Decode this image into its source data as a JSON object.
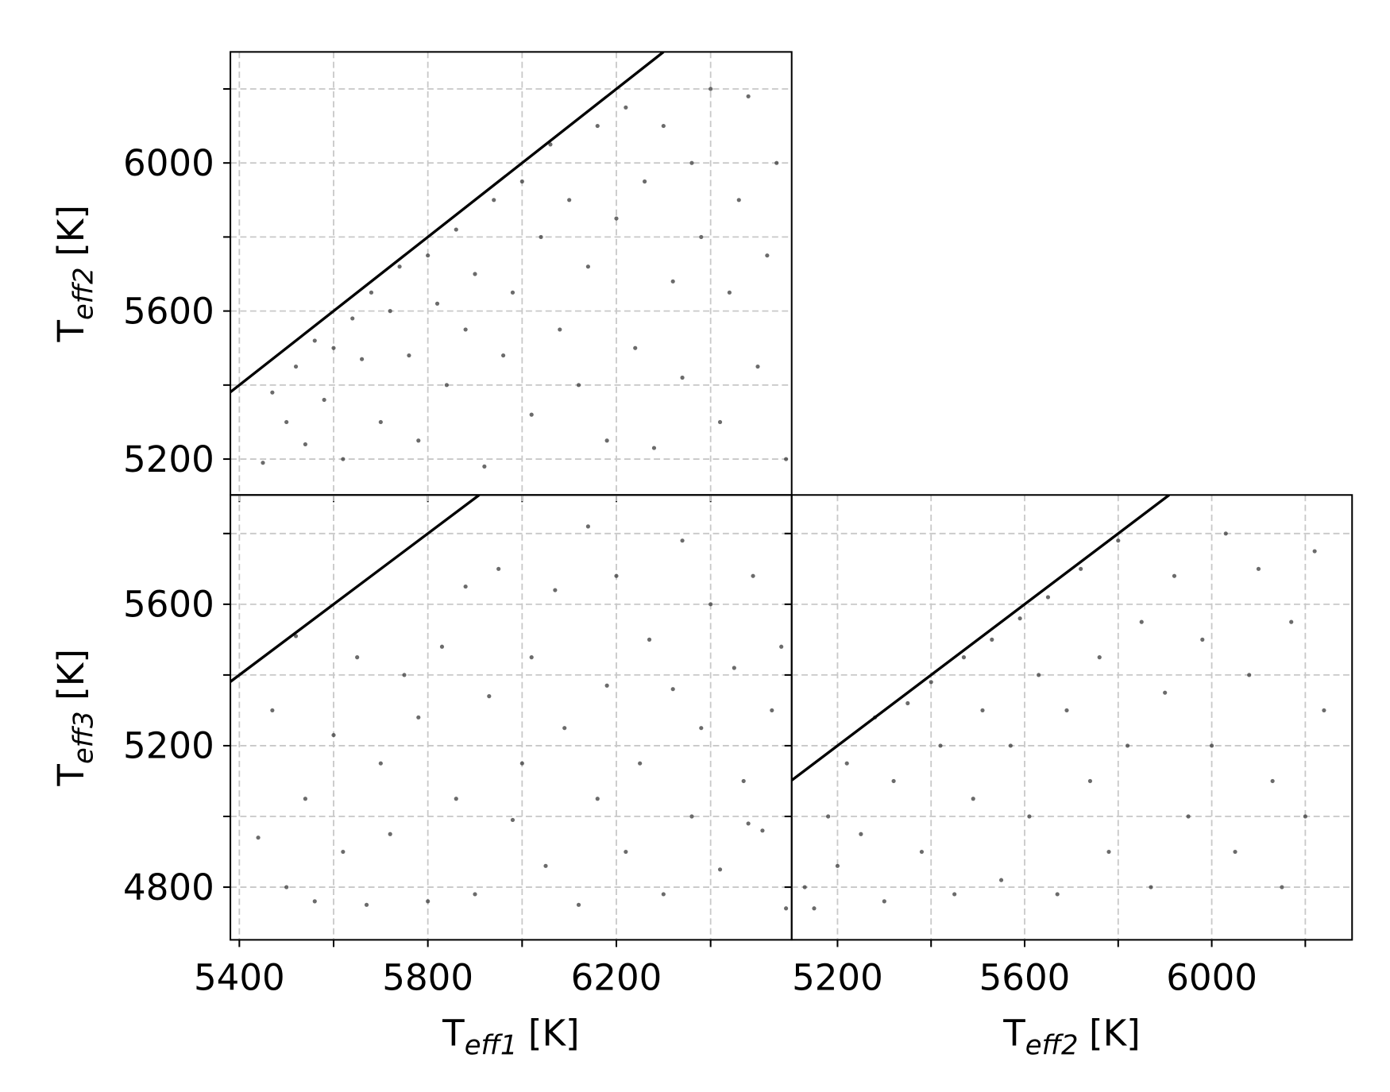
{
  "chart_data": [
    {
      "type": "scatter",
      "color": "#3a3a3a",
      "grid": true,
      "ylabel": {
        "base": "T",
        "sub": "eff2",
        "unit": "[K]"
      },
      "xlim": [
        5381,
        6572
      ],
      "ylim": [
        5103,
        6300
      ],
      "xminor": [
        5400,
        5600,
        5800,
        6000,
        6200,
        6400
      ],
      "yticks": [
        5200,
        5600,
        6000
      ],
      "yminor": [
        5400,
        5800,
        6200
      ],
      "reference_line": {
        "x": [
          5381,
          6300
        ],
        "y": [
          5381,
          6300
        ]
      },
      "x": [
        5450,
        5470,
        5500,
        5520,
        5540,
        5560,
        5580,
        5600,
        5620,
        5640,
        5660,
        5680,
        5700,
        5720,
        5740,
        5760,
        5780,
        5800,
        5820,
        5840,
        5860,
        5880,
        5900,
        5920,
        5940,
        5960,
        5980,
        6000,
        6020,
        6040,
        6060,
        6080,
        6100,
        6120,
        6140,
        6160,
        6180,
        6200,
        6220,
        6240,
        6260,
        6280,
        6300,
        6320,
        6340,
        6360,
        6380,
        6400,
        6420,
        6440,
        6460,
        6480,
        6500,
        6520,
        6540,
        6560
      ],
      "y": [
        5190,
        5380,
        5300,
        5450,
        5240,
        5520,
        5360,
        5500,
        5200,
        5580,
        5470,
        5650,
        5300,
        5600,
        5720,
        5480,
        5250,
        5750,
        5620,
        5400,
        5820,
        5550,
        5700,
        5180,
        5900,
        5480,
        5650,
        5950,
        5320,
        5800,
        6050,
        5550,
        5900,
        5400,
        5720,
        6100,
        5250,
        5850,
        6150,
        5500,
        5950,
        5230,
        6100,
        5680,
        5420,
        6000,
        5800,
        6200,
        5300,
        5650,
        5900,
        6180,
        5450,
        5750,
        6000,
        5200
      ]
    },
    {
      "type": "scatter",
      "color": "#3a3a3a",
      "grid": true,
      "xlabel": {
        "base": "T",
        "sub": "eff1",
        "unit": "[K]"
      },
      "ylabel": {
        "base": "T",
        "sub": "eff3",
        "unit": "[K]"
      },
      "xlim": [
        5381,
        6572
      ],
      "ylim": [
        4651,
        5909
      ],
      "xticks": [
        5400,
        5800,
        6200
      ],
      "xminor": [
        5600,
        6000,
        6400
      ],
      "yticks": [
        4800,
        5200,
        5600
      ],
      "yminor": [
        5000,
        5400,
        5800
      ],
      "reference_line": {
        "x": [
          5381,
          5909
        ],
        "y": [
          5381,
          5909
        ]
      },
      "x": [
        5440,
        5470,
        5500,
        5520,
        5540,
        5560,
        5600,
        5620,
        5650,
        5670,
        5700,
        5720,
        5750,
        5780,
        5800,
        5830,
        5860,
        5880,
        5900,
        5930,
        5950,
        5980,
        6000,
        6020,
        6050,
        6070,
        6090,
        6120,
        6140,
        6160,
        6180,
        6200,
        6220,
        6250,
        6270,
        6300,
        6320,
        6340,
        6360,
        6380,
        6400,
        6420,
        6450,
        6470,
        6490,
        6510,
        6530,
        6550,
        6560,
        6480
      ],
      "y": [
        4940,
        5300,
        4800,
        5510,
        5050,
        4760,
        5230,
        4900,
        5450,
        4750,
        5150,
        4950,
        5400,
        5280,
        4760,
        5480,
        5050,
        5650,
        4780,
        5340,
        5700,
        4990,
        5150,
        5450,
        4860,
        5640,
        5250,
        4750,
        5820,
        5050,
        5370,
        5680,
        4900,
        5150,
        5500,
        4780,
        5360,
        5780,
        5000,
        5250,
        5600,
        4850,
        5420,
        5100,
        5680,
        4960,
        5300,
        5480,
        4740,
        4980
      ]
    },
    {
      "type": "scatter",
      "color": "#3a3a3a",
      "grid": true,
      "xlabel": {
        "base": "T",
        "sub": "eff2",
        "unit": "[K]"
      },
      "xlim": [
        5102,
        6300
      ],
      "ylim": [
        4651,
        5909
      ],
      "xticks": [
        5200,
        5600,
        6000
      ],
      "xminor": [
        5400,
        5800,
        6200
      ],
      "yminor": [
        4800,
        5000,
        5200,
        5400,
        5600,
        5800
      ],
      "reference_line": {
        "x": [
          5102,
          5909
        ],
        "y": [
          5102,
          5909
        ]
      },
      "x": [
        5130,
        5150,
        5180,
        5200,
        5220,
        5250,
        5280,
        5300,
        5320,
        5350,
        5380,
        5400,
        5420,
        5450,
        5470,
        5490,
        5510,
        5530,
        5550,
        5570,
        5590,
        5610,
        5630,
        5650,
        5670,
        5690,
        5720,
        5740,
        5760,
        5780,
        5800,
        5820,
        5850,
        5870,
        5900,
        5920,
        5950,
        5980,
        6000,
        6030,
        6050,
        6080,
        6100,
        6130,
        6150,
        6170,
        6200,
        6220,
        6240
      ],
      "y": [
        4800,
        4740,
        5000,
        4860,
        5150,
        4950,
        5280,
        4760,
        5100,
        5320,
        4900,
        5380,
        5200,
        4780,
        5450,
        5050,
        5300,
        5500,
        4820,
        5200,
        5560,
        5000,
        5400,
        5620,
        4780,
        5300,
        5700,
        5100,
        5450,
        4900,
        5780,
        5200,
        5550,
        4800,
        5350,
        5680,
        5000,
        5500,
        5200,
        5800,
        4900,
        5400,
        5700,
        5100,
        4800,
        5550,
        5000,
        5750,
        5300
      ]
    }
  ]
}
